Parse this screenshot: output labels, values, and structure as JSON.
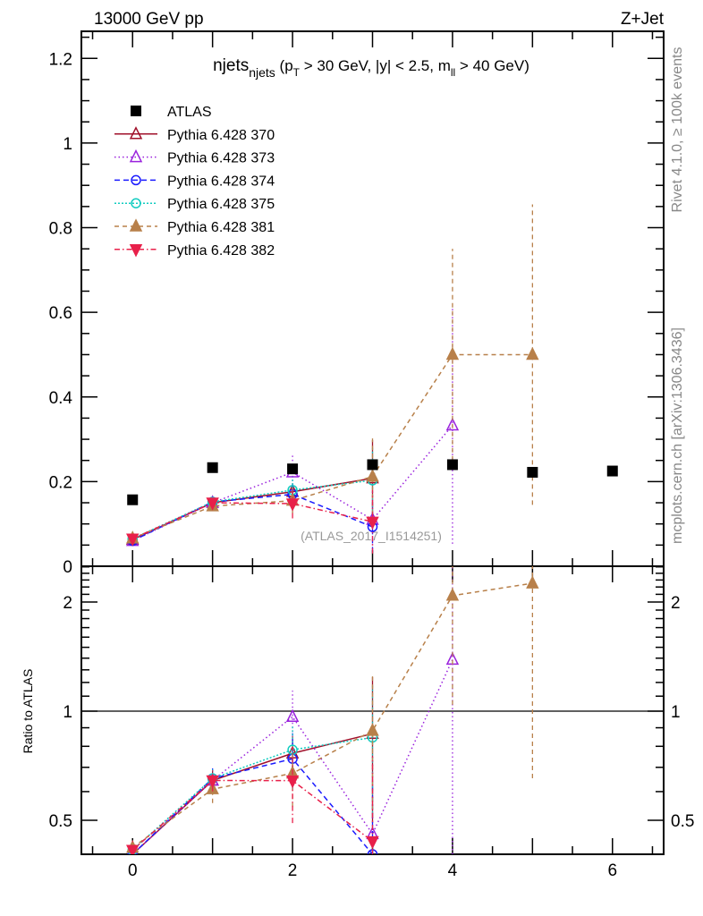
{
  "header": {
    "left": "13000 GeV pp",
    "right": "Z+Jet"
  },
  "side_text": {
    "top": "Rivet 4.1.0, ≥ 100k events",
    "bottom": "mcplots.cern.ch [arXiv:1306.3436]"
  },
  "watermark": "(ATLAS_2017_I1514251)",
  "chart_data": {
    "type": "scatter",
    "title": {
      "main": "njets",
      "sub": "njets",
      "cut_pre": " (p",
      "cut_T": "T",
      "cut_mid": " > 30 GeV, |y| < 2.5, m",
      "cut_ll": "ll",
      "cut_post": " > 40 GeV)"
    },
    "xlim": [
      -0.64,
      6.64
    ],
    "ylim": [
      0,
      1.264
    ],
    "ratio_ylim": [
      0.403,
      2.51
    ],
    "ratio_scale": "log",
    "ylabel_ratio": "Ratio to ATLAS",
    "x_ticks": [
      0,
      2,
      4,
      6
    ],
    "x_tick_labels": [
      "0",
      "2",
      "4",
      "6"
    ],
    "y_ticks": [
      0,
      0.2,
      0.4,
      0.6,
      0.8,
      1.0,
      1.2
    ],
    "y_tick_labels": [
      "0",
      "0.2",
      "0.4",
      "0.6",
      "0.8",
      "1",
      "1.2"
    ],
    "ratio_ticks": [
      0.5,
      1,
      2
    ],
    "ratio_tick_labels": [
      "0.5",
      "1",
      "2"
    ],
    "legend_position": "top-left",
    "reference": {
      "name": "ATLAS",
      "color": "#000000",
      "x": [
        0,
        1,
        2,
        3,
        4,
        5,
        6
      ],
      "y": [
        0.157,
        0.233,
        0.23,
        0.24,
        0.24,
        0.222,
        0.225
      ]
    },
    "series": [
      {
        "name": "Pythia 6.428 370",
        "color": "#a0102a",
        "marker": "open-triangle-up",
        "dash": "",
        "x": [
          0,
          1,
          2,
          3
        ],
        "y": [
          0.063,
          0.15,
          0.176,
          0.208
        ],
        "err": [
          0.004,
          0.01,
          0.02,
          0.09
        ]
      },
      {
        "name": "Pythia 6.428 373",
        "color": "#9a22dd",
        "marker": "open-triangle-up",
        "dash": "1.5,3",
        "x": [
          0,
          1,
          2,
          3,
          4
        ],
        "y": [
          0.06,
          0.15,
          0.222,
          0.11,
          0.333
        ],
        "err": [
          0.004,
          0.01,
          0.04,
          0.07,
          0.28
        ]
      },
      {
        "name": "Pythia 6.428 374",
        "color": "#1a1aff",
        "marker": "open-circle",
        "dash": "6,4",
        "x": [
          0,
          1,
          2,
          3
        ],
        "y": [
          0.06,
          0.152,
          0.17,
          0.093
        ],
        "err": [
          0.004,
          0.01,
          0.03,
          0.06
        ]
      },
      {
        "name": "Pythia 6.428 375",
        "color": "#11ccc0",
        "marker": "open-circle",
        "dash": "2,2",
        "x": [
          0,
          1,
          2,
          3
        ],
        "y": [
          0.065,
          0.152,
          0.18,
          0.203
        ],
        "err": [
          0.004,
          0.01,
          0.03,
          0.08
        ]
      },
      {
        "name": "Pythia 6.428 381",
        "color": "#b8804a",
        "marker": "filled-triangle-up",
        "dash": "5,4",
        "x": [
          0,
          1,
          2,
          3,
          4,
          5
        ],
        "y": [
          0.066,
          0.142,
          0.155,
          0.212,
          0.5,
          0.5
        ],
        "err": [
          0.004,
          0.012,
          0.03,
          0.09,
          0.25,
          0.355
        ]
      },
      {
        "name": "Pythia 6.428 382",
        "color": "#e8204a",
        "marker": "filled-triangle-down",
        "dash": "6,3,1.5,3",
        "x": [
          0,
          1,
          2,
          3
        ],
        "y": [
          0.065,
          0.15,
          0.148,
          0.105
        ],
        "err": [
          0.004,
          0.01,
          0.035,
          0.075
        ]
      }
    ]
  }
}
